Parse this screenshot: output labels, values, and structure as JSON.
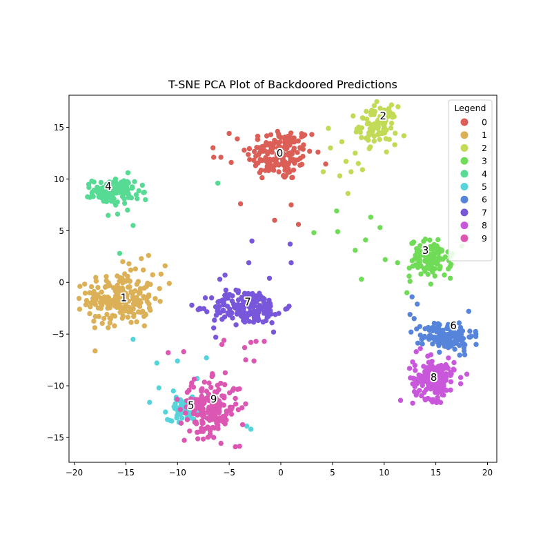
{
  "chart_data": {
    "type": "scatter",
    "title": "T-SNE PCA Plot of Backdoored Predictions",
    "xlabel": "",
    "ylabel": "",
    "xlim": [
      -20.5,
      20.9
    ],
    "ylim": [
      -17.4,
      18.1
    ],
    "x_ticks": [
      -20,
      -15,
      -10,
      -5,
      0,
      5,
      10,
      15,
      20
    ],
    "y_ticks": [
      -15,
      -10,
      -5,
      0,
      5,
      10,
      15
    ],
    "x_tick_labels": [
      "−20",
      "−15",
      "−10",
      "−5",
      "0",
      "5",
      "10",
      "15",
      "20"
    ],
    "y_tick_labels": [
      "−15",
      "−10",
      "−5",
      "0",
      "5",
      "10",
      "15"
    ],
    "grid": false,
    "legend": {
      "title": "Legend",
      "placement": "top-right"
    },
    "series": [
      {
        "name": "0",
        "color": "#db5f57",
        "center": [
          -0.1,
          12.4
        ],
        "spread": [
          1.6,
          1.3
        ],
        "count": 160,
        "outliers": [
          [
            -5,
            14.4
          ],
          [
            -6.5,
            12.1
          ],
          [
            -5.8,
            12.1
          ],
          [
            -3.9,
            7.6
          ],
          [
            1.7,
            5.6
          ],
          [
            -0.6,
            6.0
          ],
          [
            1,
            7.5
          ],
          [
            3,
            14.3
          ],
          [
            -4.8,
            11.6
          ]
        ]
      },
      {
        "name": "1",
        "color": "#dbb057",
        "center": [
          -15.5,
          -1.6
        ],
        "spread": [
          1.6,
          1.2
        ],
        "count": 210,
        "outliers": [
          [
            -18.5,
            -1.0
          ],
          [
            -13.5,
            2.3
          ],
          [
            -12.8,
            2.6
          ],
          [
            -11.2,
            1.6
          ],
          [
            -10.8,
            -0.1
          ],
          [
            -11.6,
            0.8
          ],
          [
            -14.7,
            1.8
          ],
          [
            -16.1,
            -4.2
          ],
          [
            -13.2,
            -4.2
          ],
          [
            -15.3,
            2.0
          ]
        ]
      },
      {
        "name": "2",
        "color": "#c1db57",
        "center": [
          9.4,
          15.2
        ],
        "spread": [
          0.9,
          0.9
        ],
        "count": 95,
        "outliers": [
          [
            4.6,
            14.9
          ],
          [
            4.8,
            13.0
          ],
          [
            5.9,
            13.6
          ],
          [
            4.1,
            10.7
          ],
          [
            5.7,
            10.3
          ],
          [
            6.3,
            11.7
          ],
          [
            6.8,
            10.7
          ],
          [
            7.2,
            12.5
          ],
          [
            7.5,
            11.5
          ],
          [
            6.5,
            8.6
          ],
          [
            7.9,
            10.9
          ],
          [
            7.8,
            14.0
          ],
          [
            7.0,
            16.1
          ]
        ]
      },
      {
        "name": "3",
        "color": "#6fdb57",
        "center": [
          14.5,
          2.3
        ],
        "spread": [
          1.0,
          0.9
        ],
        "count": 110,
        "outliers": [
          [
            3.2,
            4.8
          ],
          [
            5.4,
            6.9
          ],
          [
            5.5,
            4.9
          ],
          [
            7.2,
            3.1
          ],
          [
            8.2,
            4.1
          ],
          [
            8.7,
            6.3
          ],
          [
            9.6,
            5.3
          ],
          [
            7.8,
            0.3
          ],
          [
            10.1,
            2.2
          ],
          [
            11.3,
            1.9
          ],
          [
            12.2,
            -1.0
          ],
          [
            12.5,
            0.1
          ],
          [
            16.4,
            0.4
          ],
          [
            12.8,
            3.8
          ]
        ]
      },
      {
        "name": "4",
        "color": "#57db94",
        "center": [
          -16.2,
          8.8
        ],
        "spread": [
          1.0,
          0.6
        ],
        "count": 125,
        "outliers": [
          [
            -14.8,
            10.6
          ],
          [
            -13.4,
            9.4
          ],
          [
            -13.9,
            8.1
          ],
          [
            -13.1,
            8.0
          ],
          [
            -14.3,
            5.5
          ],
          [
            -15.8,
            6.6
          ],
          [
            -6.1,
            9.6
          ],
          [
            -15.6,
            2.8
          ]
        ]
      },
      {
        "name": "5",
        "color": "#57d3db",
        "center": [
          -9.3,
          -12.3
        ],
        "spread": [
          0.8,
          0.5
        ],
        "count": 95,
        "outliers": [
          [
            -12.0,
            -7.8
          ],
          [
            -10.0,
            -7.6
          ],
          [
            -7.2,
            -7.3
          ],
          [
            -11.8,
            -10.2
          ],
          [
            -12.7,
            -11.6
          ],
          [
            -8.1,
            -9.3
          ],
          [
            -3.3,
            -13.9
          ],
          [
            -2.9,
            -14.2
          ],
          [
            -14.3,
            -5.5
          ],
          [
            -6.8,
            -11.4
          ],
          [
            -10.4,
            -10.5
          ]
        ]
      },
      {
        "name": "6",
        "color": "#5784db",
        "center": [
          16.2,
          -5.2
        ],
        "spread": [
          1.2,
          0.7
        ],
        "count": 130,
        "outliers": [
          [
            12.7,
            -1.4
          ],
          [
            13.2,
            -2.1
          ],
          [
            12.5,
            -3.1
          ],
          [
            12.9,
            -3.5
          ],
          [
            12.6,
            -4.8
          ],
          [
            13.5,
            -5.1
          ],
          [
            18.9,
            -6.0
          ],
          [
            17.8,
            -7.0
          ]
        ]
      },
      {
        "name": "7",
        "color": "#7957db",
        "center": [
          -3.3,
          -2.4
        ],
        "spread": [
          1.7,
          0.8
        ],
        "count": 200,
        "outliers": [
          [
            -2.8,
            4.0
          ],
          [
            0.9,
            3.7
          ],
          [
            1.0,
            1.9
          ],
          [
            -3.1,
            1.9
          ],
          [
            -6.3,
            -5.3
          ],
          [
            -6.5,
            -4.4
          ],
          [
            0.8,
            -2.3
          ],
          [
            -0.2,
            -3.0
          ],
          [
            -0.7,
            -4.8
          ],
          [
            -5.4,
            0.7
          ],
          [
            -1.1,
            0.4
          ],
          [
            -5.9,
            0.3
          ]
        ]
      },
      {
        "name": "8",
        "color": "#c957db",
        "center": [
          14.8,
          -9.3
        ],
        "spread": [
          1.0,
          1.0
        ],
        "count": 155,
        "outliers": [
          [
            13.1,
            -6.7
          ],
          [
            13.5,
            -6.4
          ],
          [
            17.4,
            -9.2
          ],
          [
            17.4,
            -9.8
          ],
          [
            16.1,
            -8.2
          ],
          [
            16.7,
            -8.4
          ],
          [
            13.1,
            -10.9
          ],
          [
            15.8,
            -10.3
          ]
        ]
      },
      {
        "name": "9",
        "color": "#db57b2",
        "center": [
          -6.9,
          -12.1
        ],
        "spread": [
          1.4,
          1.3
        ],
        "count": 190,
        "outliers": [
          [
            -10.9,
            -6.8
          ],
          [
            -9.4,
            -6.7
          ],
          [
            -5.5,
            -5.6
          ],
          [
            -5.7,
            -6.0
          ],
          [
            -3.5,
            -6.3
          ],
          [
            -2.9,
            -5.8
          ],
          [
            -1.6,
            -5.7
          ],
          [
            -2.4,
            -5.7
          ],
          [
            -3.4,
            -7.5
          ],
          [
            -2.6,
            -7.6
          ],
          [
            -4.4,
            -15.9
          ],
          [
            -8.1,
            -14.5
          ],
          [
            -6.5,
            -15.0
          ],
          [
            -4.0,
            -10.3
          ]
        ]
      }
    ],
    "cluster_labels": [
      {
        "text": "0",
        "x": -0.1,
        "y": 12.5
      },
      {
        "text": "1",
        "x": -15.2,
        "y": -1.5
      },
      {
        "text": "2",
        "x": 9.9,
        "y": 16.1
      },
      {
        "text": "3",
        "x": 14.0,
        "y": 3.1
      },
      {
        "text": "4",
        "x": -16.7,
        "y": 9.3
      },
      {
        "text": "5",
        "x": -8.7,
        "y": -11.9
      },
      {
        "text": "6",
        "x": 16.7,
        "y": -4.2
      },
      {
        "text": "7",
        "x": -3.2,
        "y": -1.9
      },
      {
        "text": "8",
        "x": 14.8,
        "y": -9.2
      },
      {
        "text": "9",
        "x": -6.5,
        "y": -11.3
      }
    ]
  }
}
